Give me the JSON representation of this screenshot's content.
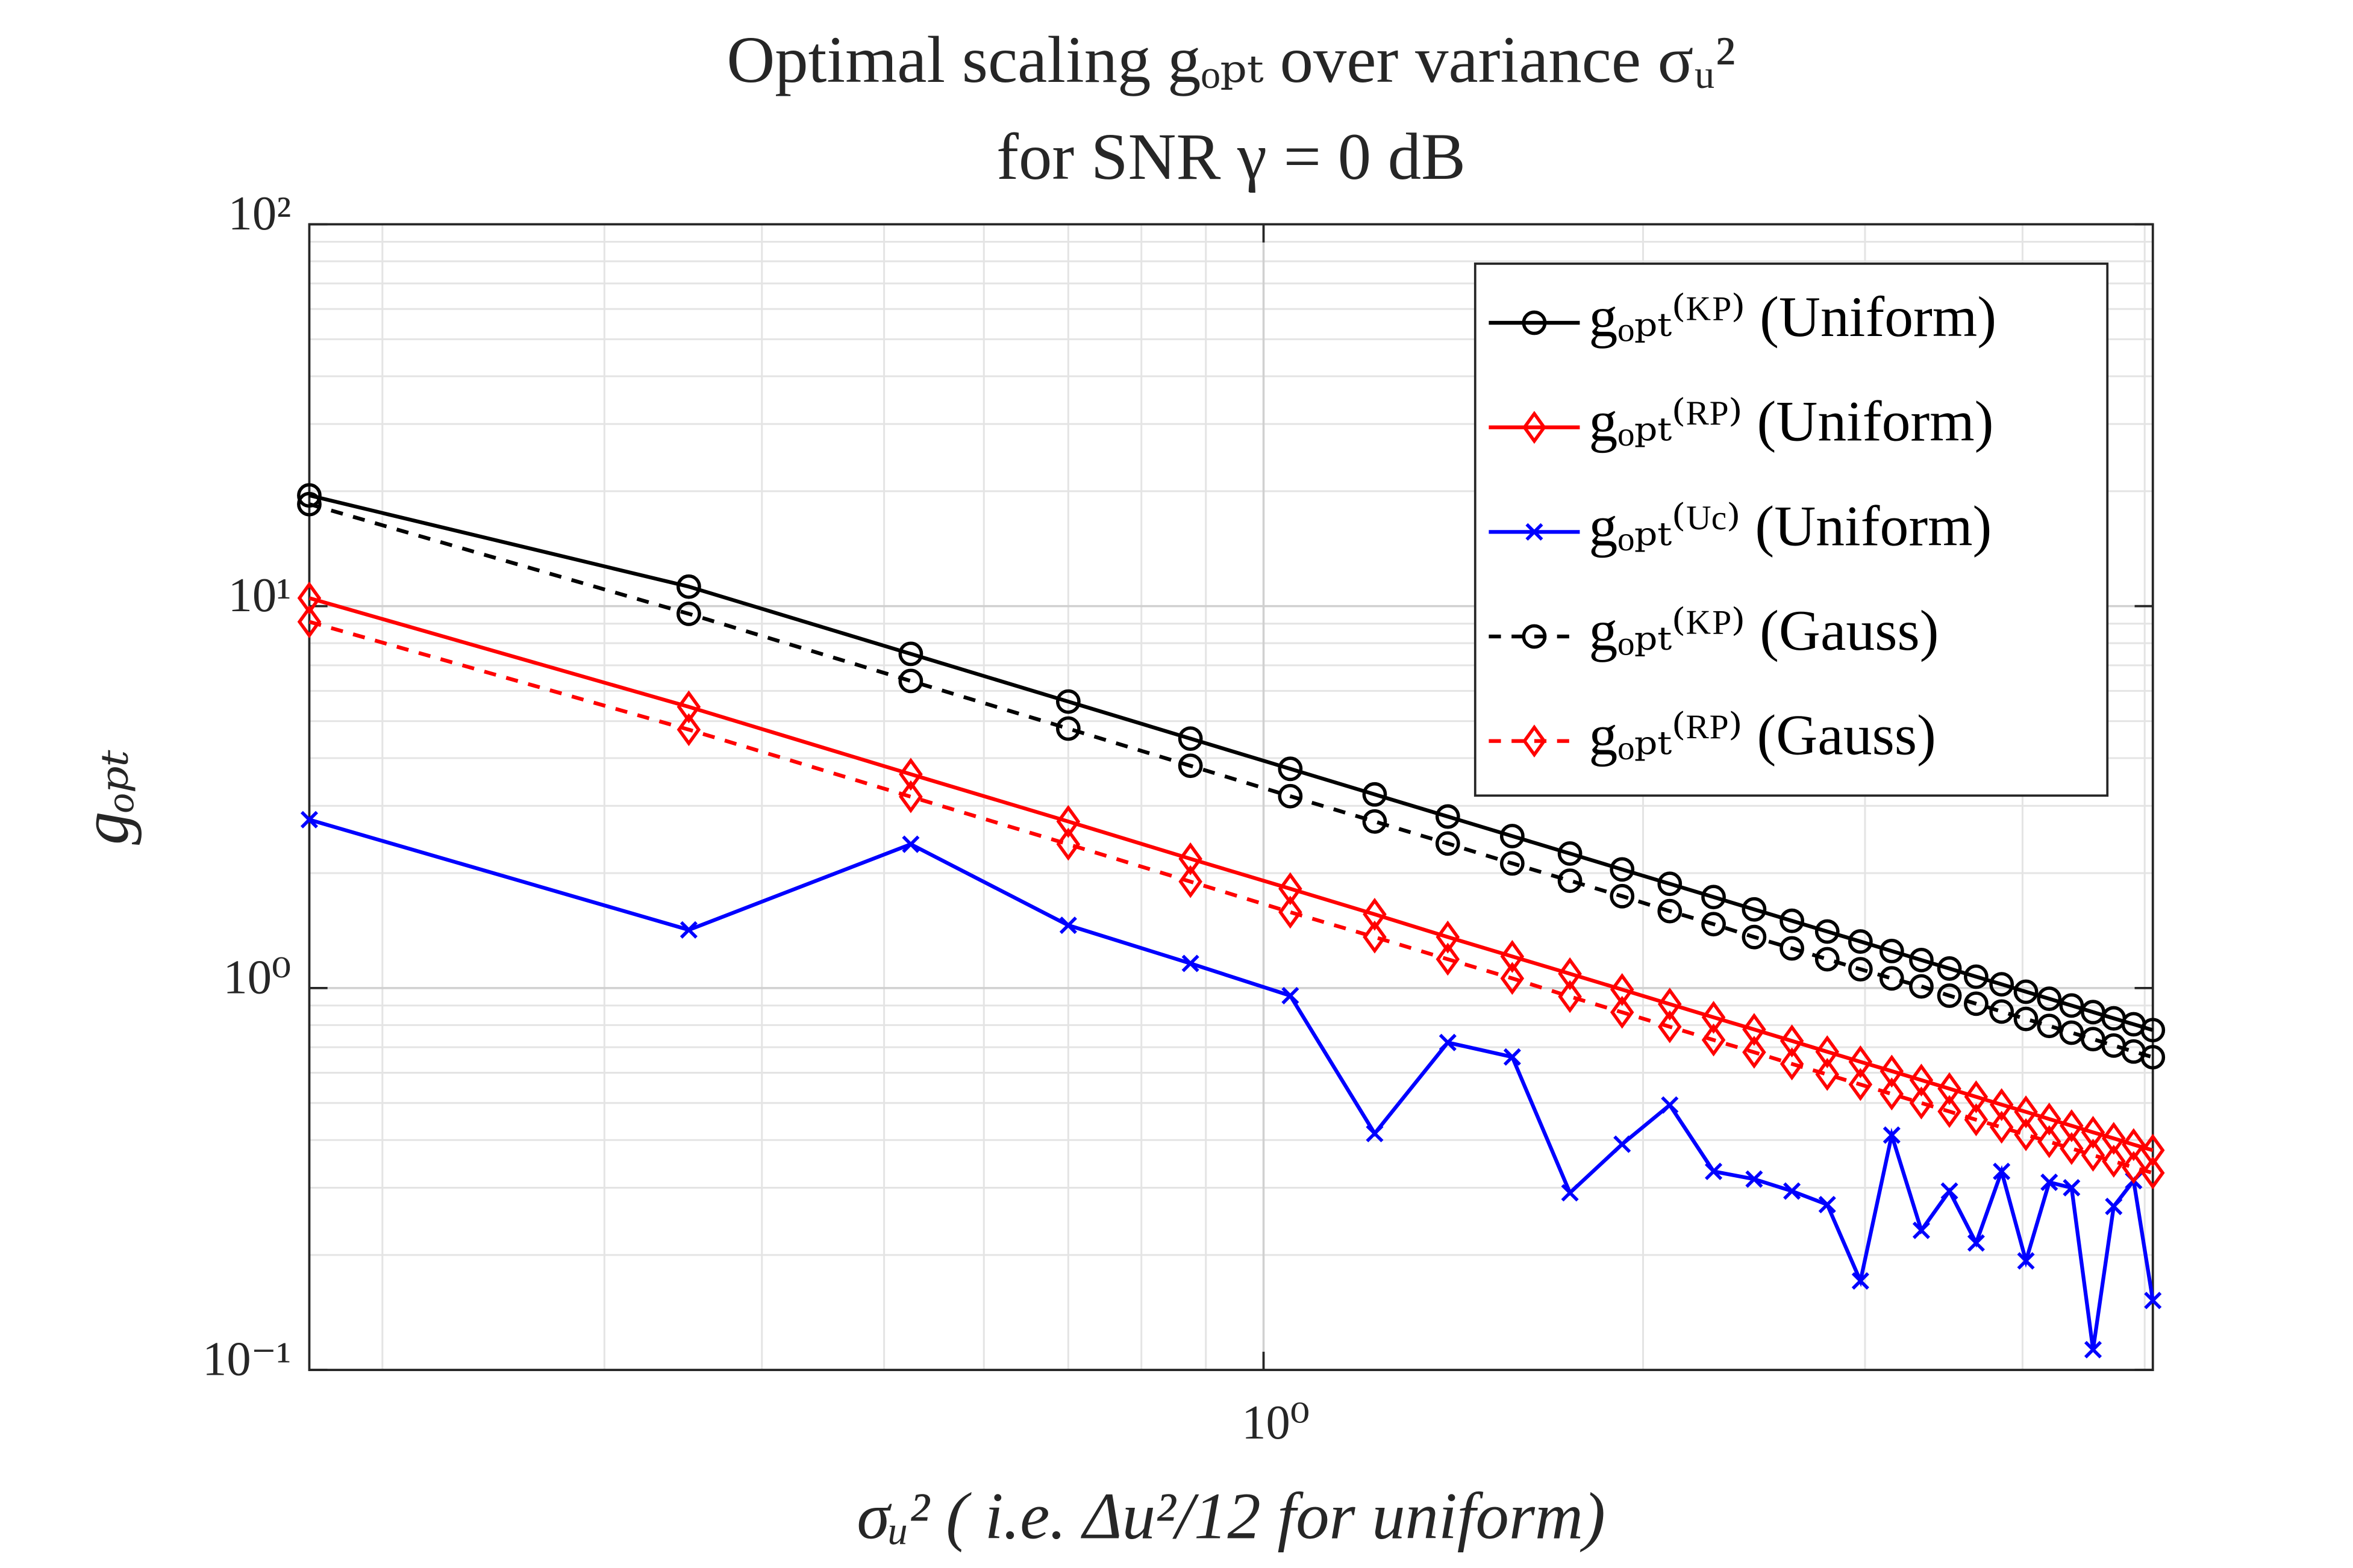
{
  "chart_data": {
    "type": "line",
    "title": [
      "Optimal scaling gₒₚₜ over variance σᵤ²",
      "for SNR γ = 0 dB"
    ],
    "xlabel": "σᵤ² ( i.e. Δu²/12 for uniform)",
    "ylabel": "gₒₚₜ",
    "xscale": "log",
    "yscale": "log",
    "grid": true,
    "legend": "upper right",
    "x": [
      0.175,
      0.35,
      0.525,
      0.7,
      0.875,
      1.05,
      1.225,
      1.4,
      1.575,
      1.75,
      1.925,
      2.1,
      2.275,
      2.45,
      2.625,
      2.8,
      2.975,
      3.15,
      3.325,
      3.5,
      3.675,
      3.85,
      4.025,
      4.2,
      4.375,
      4.55,
      4.725,
      4.9,
      5.075
    ],
    "xlim": [
      0.175,
      5.075
    ],
    "xticks": [
      {
        "value": 1,
        "label": "10⁰"
      }
    ],
    "ylim": [
      0.1,
      100
    ],
    "yticks": [
      {
        "value": 0.1,
        "label": "10⁻¹"
      },
      {
        "value": 1,
        "label": "10⁰"
      },
      {
        "value": 10,
        "label": "10¹"
      },
      {
        "value": 100,
        "label": "10²"
      }
    ],
    "series": [
      {
        "name": "gₒₚₜ⁽ᴷᴾ⁾ (Uniform)",
        "color": "#000000",
        "marker": "o",
        "linestyle": "solid",
        "values": [
          19.5,
          11.25,
          7.5,
          5.625,
          4.5,
          3.75,
          3.214,
          2.8125,
          2.5,
          2.25,
          2.045,
          1.875,
          1.731,
          1.607,
          1.5,
          1.406,
          1.324,
          1.25,
          1.184,
          1.125,
          1.071,
          1.023,
          0.978,
          0.9375,
          0.9,
          0.865,
          0.833,
          0.804,
          0.776
        ]
      },
      {
        "name": "gₒₚₜ⁽ᴿᴾ⁾ (Uniform)",
        "color": "#ff0000",
        "marker": "d",
        "linestyle": "solid",
        "values": [
          10.5,
          5.45,
          3.63,
          2.73,
          2.18,
          1.82,
          1.56,
          1.36,
          1.21,
          1.09,
          0.991,
          0.908,
          0.838,
          0.779,
          0.727,
          0.681,
          0.641,
          0.606,
          0.574,
          0.545,
          0.519,
          0.495,
          0.474,
          0.454,
          0.436,
          0.419,
          0.404,
          0.389,
          0.376
        ]
      },
      {
        "name": "gₒₚₜ⁽ᵁᶜ⁾ (Uniform)",
        "color": "#0000ff",
        "marker": "x",
        "linestyle": "solid",
        "values": [
          2.76,
          1.42,
          2.38,
          1.46,
          1.16,
          0.955,
          0.416,
          0.72,
          0.66,
          0.291,
          0.39,
          0.494,
          0.331,
          0.316,
          0.294,
          0.271,
          0.171,
          0.412,
          0.232,
          0.294,
          0.215,
          0.331,
          0.193,
          0.31,
          0.3,
          0.113,
          0.268,
          0.313,
          0.152
        ]
      },
      {
        "name": "gₒₚₜ⁽ᴷᴾ⁾ (Gauss)",
        "color": "#000000",
        "marker": "o",
        "linestyle": "dashed",
        "values": [
          18.5,
          9.55,
          6.37,
          4.78,
          3.82,
          3.18,
          2.73,
          2.39,
          2.12,
          1.91,
          1.74,
          1.59,
          1.47,
          1.36,
          1.27,
          1.19,
          1.12,
          1.06,
          1.01,
          0.955,
          0.91,
          0.868,
          0.83,
          0.796,
          0.764,
          0.735,
          0.707,
          0.682,
          0.659
        ]
      },
      {
        "name": "gₒₚₜ⁽ᴿᴾ⁾ (Gauss)",
        "color": "#ff0000",
        "marker": "d",
        "linestyle": "dashed",
        "values": [
          9.1,
          4.75,
          3.17,
          2.38,
          1.9,
          1.58,
          1.36,
          1.19,
          1.06,
          0.95,
          0.864,
          0.792,
          0.731,
          0.679,
          0.633,
          0.594,
          0.559,
          0.528,
          0.5,
          0.475,
          0.452,
          0.432,
          0.413,
          0.396,
          0.38,
          0.365,
          0.352,
          0.339,
          0.328
        ]
      }
    ]
  }
}
